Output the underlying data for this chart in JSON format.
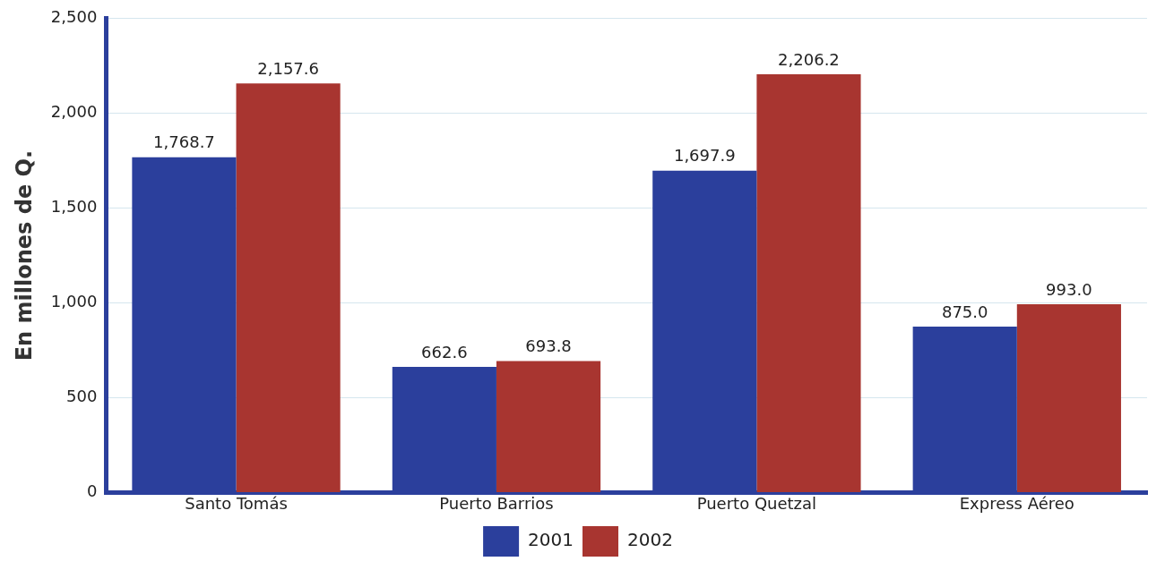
{
  "chart_data": {
    "type": "bar",
    "ylabel": "En millones de Q.",
    "categories": [
      "Santo Tomás",
      "Puerto Barrios",
      "Puerto Quetzal",
      "Express Aéreo"
    ],
    "series": [
      {
        "name": "2001",
        "color": "#2b3f9c",
        "values": [
          1768.7,
          662.6,
          1697.9,
          875.0
        ],
        "value_labels": [
          "1,768.7",
          "662.6",
          "1,697.9",
          "875.0"
        ]
      },
      {
        "name": "2002",
        "color": "#a83530",
        "values": [
          2157.6,
          693.8,
          2206.2,
          993.0
        ],
        "value_labels": [
          "2,157.6",
          "693.8",
          "2,206.2",
          "993.0"
        ]
      }
    ],
    "ylim": [
      0,
      2500
    ],
    "yticks": [
      0,
      500,
      {
        "value": 1000,
        "label": "1,000"
      },
      {
        "value": 1500,
        "label": "1,500"
      },
      {
        "value": 2000,
        "label": "2,000"
      },
      {
        "value": 2500,
        "label": "2,500"
      }
    ],
    "grid": "y",
    "legend": "bottom"
  }
}
